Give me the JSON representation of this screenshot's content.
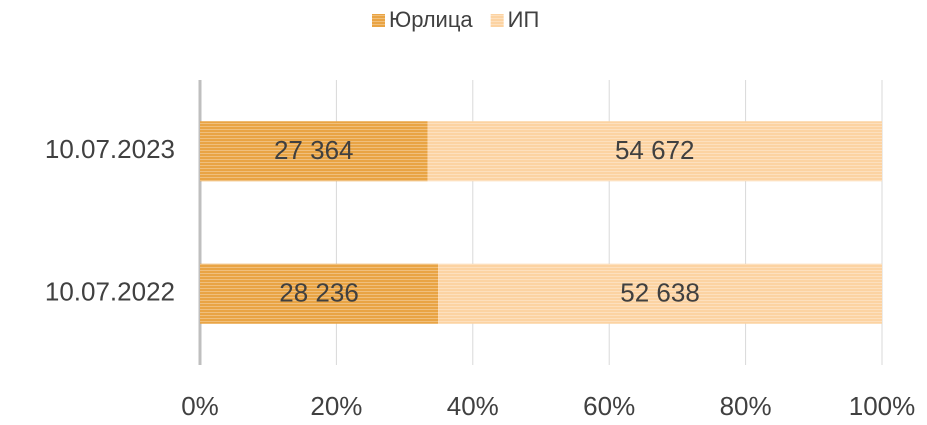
{
  "chart_data": {
    "type": "bar",
    "orientation": "horizontal",
    "stacked": "percent",
    "categories": [
      "10.07.2023",
      "10.07.2022"
    ],
    "series": [
      {
        "name": "Юрлица",
        "color": "#e9a444",
        "values": [
          27364,
          28236
        ],
        "value_labels": [
          "27 364",
          "28 236"
        ]
      },
      {
        "name": "ИП",
        "color": "#fcd3a2",
        "values": [
          54672,
          52638
        ],
        "value_labels": [
          "54 672",
          "52 638"
        ]
      }
    ],
    "xlim": [
      0,
      100
    ],
    "xticks": [
      {
        "value": 0,
        "label": "0%"
      },
      {
        "value": 20,
        "label": "20%"
      },
      {
        "value": 40,
        "label": "40%"
      },
      {
        "value": 60,
        "label": "60%"
      },
      {
        "value": 80,
        "label": "80%"
      },
      {
        "value": 100,
        "label": "100%"
      }
    ],
    "grid": true,
    "legend": "top"
  }
}
